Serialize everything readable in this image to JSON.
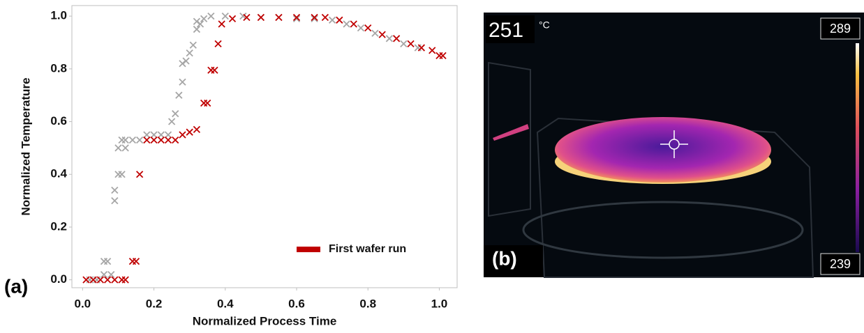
{
  "chart_data": {
    "type": "scatter",
    "x_label": "Normalized Process Time",
    "y_label": "Normalized Temperature",
    "xlim": [
      -0.03,
      1.05
    ],
    "ylim": [
      -0.03,
      1.04
    ],
    "xticks": [
      {
        "value": 0,
        "label": "0.0"
      },
      0.2,
      0.4,
      0.6,
      0.8,
      {
        "value": 1,
        "label": "1.0"
      }
    ],
    "yticks": [
      {
        "value": 0,
        "label": "0.0"
      },
      0.2,
      0.4,
      0.6,
      0.8,
      {
        "value": 1,
        "label": "1.0"
      }
    ],
    "grid": false,
    "legend": "lower right",
    "series": [
      {
        "color": "#a6a6a6",
        "x": [
          0.02,
          0.04,
          0.06,
          0.06,
          0.07,
          0.08,
          0.09,
          0.09,
          0.1,
          0.1,
          0.11,
          0.11,
          0.12,
          0.12,
          0.14,
          0.16,
          0.18,
          0.2,
          0.22,
          0.24,
          0.25,
          0.26,
          0.27,
          0.28,
          0.28,
          0.29,
          0.3,
          0.31,
          0.32,
          0.32,
          0.33,
          0.34,
          0.36,
          0.4,
          0.45,
          0.5,
          0.55,
          0.6,
          0.65,
          0.7,
          0.74,
          0.78,
          0.82,
          0.86,
          0.9,
          0.94
        ],
        "values": [
          0,
          0,
          0.02,
          0.07,
          0.07,
          0.02,
          0.34,
          0.3,
          0.4,
          0.5,
          0.53,
          0.4,
          0.5,
          0.53,
          0.53,
          0.53,
          0.55,
          0.55,
          0.55,
          0.55,
          0.6,
          0.63,
          0.7,
          0.75,
          0.82,
          0.83,
          0.86,
          0.89,
          0.95,
          0.98,
          0.97,
          0.99,
          1,
          1,
          1,
          0.995,
          0.995,
          0.99,
          0.99,
          0.985,
          0.97,
          0.955,
          0.935,
          0.915,
          0.895,
          0.88
        ]
      },
      {
        "name": "First wafer run",
        "color": "#c00000",
        "x": [
          0.01,
          0.03,
          0.05,
          0.07,
          0.09,
          0.11,
          0.12,
          0.14,
          0.15,
          0.16,
          0.18,
          0.2,
          0.22,
          0.24,
          0.26,
          0.28,
          0.3,
          0.32,
          0.34,
          0.35,
          0.36,
          0.37,
          0.38,
          0.39,
          0.42,
          0.46,
          0.5,
          0.55,
          0.6,
          0.65,
          0.68,
          0.72,
          0.76,
          0.8,
          0.84,
          0.88,
          0.92,
          0.95,
          0.98,
          1.0,
          1.01
        ],
        "values": [
          0,
          0,
          0,
          0,
          0,
          0,
          0,
          0.07,
          0.07,
          0.4,
          0.53,
          0.53,
          0.53,
          0.53,
          0.53,
          0.55,
          0.56,
          0.57,
          0.67,
          0.67,
          0.795,
          0.795,
          0.895,
          0.97,
          0.99,
          0.995,
          0.995,
          0.995,
          0.995,
          0.995,
          0.995,
          0.985,
          0.97,
          0.955,
          0.93,
          0.915,
          0.895,
          0.88,
          0.87,
          0.85,
          0.85
        ]
      }
    ]
  },
  "panel_labels": [
    "(a)",
    "(b)"
  ],
  "thermal_image": {
    "reading": 251,
    "unit": "°C",
    "scale_max": 289,
    "scale_min": 239
  }
}
